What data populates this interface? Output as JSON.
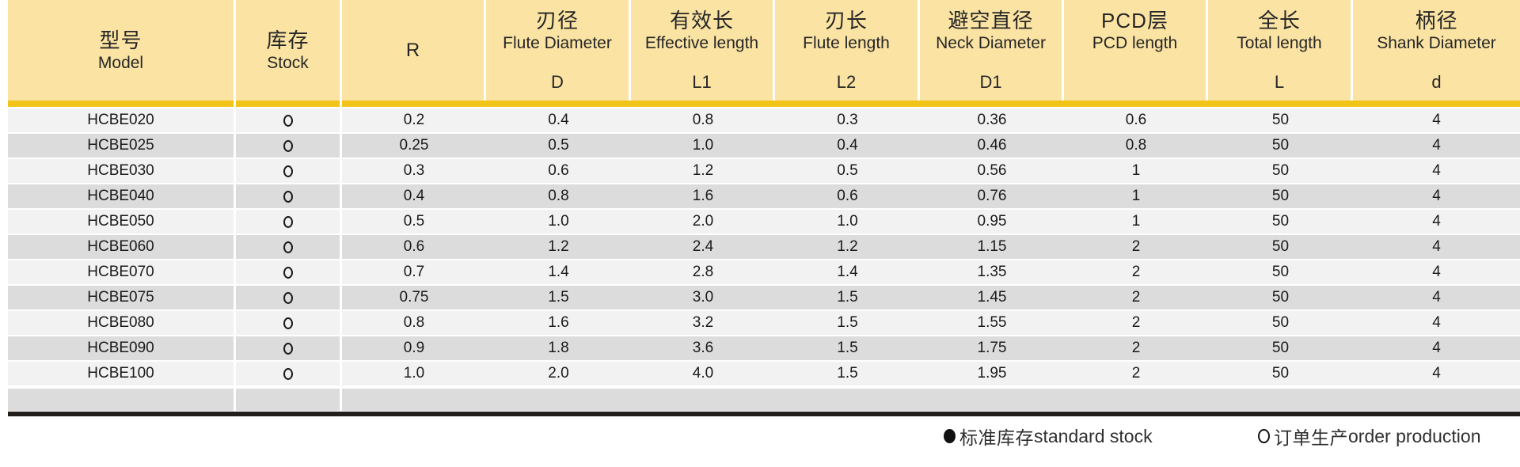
{
  "colors": {
    "header_bg": "#FAE3A3",
    "gold_bar": "#F2C318",
    "row_light": "#F2F2F3",
    "row_dark": "#DCDCDD",
    "bottom_rule": "#221E1C"
  },
  "table": {
    "columns": [
      {
        "id": "model",
        "zh": "型号",
        "en": "Model",
        "symbol": ""
      },
      {
        "id": "stock",
        "zh": "库存",
        "en": "Stock",
        "symbol": ""
      },
      {
        "id": "r",
        "zh": "",
        "en": "R",
        "symbol": ""
      },
      {
        "id": "d",
        "zh": "刃径",
        "en": "Flute Diameter",
        "symbol": "D"
      },
      {
        "id": "l1",
        "zh": "有效长",
        "en": "Effective length",
        "symbol": "L1"
      },
      {
        "id": "l2",
        "zh": "刃长",
        "en": "Flute length",
        "symbol": "L2"
      },
      {
        "id": "d1",
        "zh": "避空直径",
        "en": "Neck Diameter",
        "symbol": "D1"
      },
      {
        "id": "pcd",
        "zh": "PCD层",
        "en": "PCD length",
        "symbol": ""
      },
      {
        "id": "l",
        "zh": "全长",
        "en": "Total length",
        "symbol": "L"
      },
      {
        "id": "shank",
        "zh": "柄径",
        "en": "Shank Diameter",
        "symbol": "d"
      }
    ],
    "rows": [
      {
        "model": "HCBE020",
        "stock": "open-circle",
        "values": [
          "0.2",
          "0.4",
          "0.8",
          "0.3",
          "0.36",
          "0.6",
          "50",
          "4"
        ]
      },
      {
        "model": "HCBE025",
        "stock": "open-circle",
        "values": [
          "0.25",
          "0.5",
          "1.0",
          "0.4",
          "0.46",
          "0.8",
          "50",
          "4"
        ]
      },
      {
        "model": "HCBE030",
        "stock": "open-circle",
        "values": [
          "0.3",
          "0.6",
          "1.2",
          "0.5",
          "0.56",
          "1",
          "50",
          "4"
        ]
      },
      {
        "model": "HCBE040",
        "stock": "open-circle",
        "values": [
          "0.4",
          "0.8",
          "1.6",
          "0.6",
          "0.76",
          "1",
          "50",
          "4"
        ]
      },
      {
        "model": "HCBE050",
        "stock": "open-circle",
        "values": [
          "0.5",
          "1.0",
          "2.0",
          "1.0",
          "0.95",
          "1",
          "50",
          "4"
        ]
      },
      {
        "model": "HCBE060",
        "stock": "open-circle",
        "values": [
          "0.6",
          "1.2",
          "2.4",
          "1.2",
          "1.15",
          "2",
          "50",
          "4"
        ]
      },
      {
        "model": "HCBE070",
        "stock": "open-circle",
        "values": [
          "0.7",
          "1.4",
          "2.8",
          "1.4",
          "1.35",
          "2",
          "50",
          "4"
        ]
      },
      {
        "model": "HCBE075",
        "stock": "open-circle",
        "values": [
          "0.75",
          "1.5",
          "3.0",
          "1.5",
          "1.45",
          "2",
          "50",
          "4"
        ]
      },
      {
        "model": "HCBE080",
        "stock": "open-circle",
        "values": [
          "0.8",
          "1.6",
          "3.2",
          "1.5",
          "1.55",
          "2",
          "50",
          "4"
        ]
      },
      {
        "model": "HCBE090",
        "stock": "open-circle",
        "values": [
          "0.9",
          "1.8",
          "3.6",
          "1.5",
          "1.75",
          "2",
          "50",
          "4"
        ]
      },
      {
        "model": "HCBE100",
        "stock": "open-circle",
        "values": [
          "1.0",
          "2.0",
          "4.0",
          "1.5",
          "1.95",
          "2",
          "50",
          "4"
        ]
      }
    ]
  },
  "legend": {
    "standard": {
      "zh": "标准库存",
      "en": "standard stock"
    },
    "order": {
      "zh": "订单生产",
      "en": "order production"
    }
  }
}
